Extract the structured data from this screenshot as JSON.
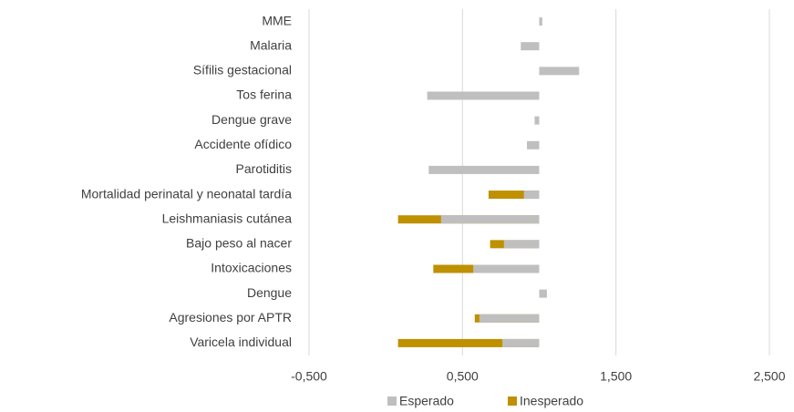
{
  "chart_data": {
    "type": "hbar",
    "categories": [
      "MME",
      "Malaria",
      "Sífilis gestacional",
      "Tos ferina",
      "Dengue grave",
      "Accidente ofídico",
      "Parotiditis",
      "Mortalidad perinatal y neonatal tardía",
      "Leishmaniasis cutánea",
      "Bajo peso al nacer",
      "Intoxicaciones",
      "Dengue",
      "Agresiones por APTR",
      "Varicela individual"
    ],
    "series": [
      {
        "name": "Esperado",
        "color": "#bfbfbf",
        "values": [
          1.02,
          0.88,
          1.26,
          0.27,
          0.97,
          0.92,
          0.28,
          0.9,
          0.36,
          0.77,
          0.57,
          1.05,
          0.61,
          0.76
        ]
      },
      {
        "name": "Inesperado",
        "color": "#bf9000",
        "values": [
          null,
          null,
          null,
          null,
          null,
          null,
          null,
          0.67,
          0.08,
          0.68,
          0.31,
          null,
          0.58,
          0.08
        ]
      }
    ],
    "axis_crosses_at": 1,
    "xlim": [
      -0.5,
      2.5
    ],
    "xticks": [
      {
        "value": -0.5,
        "label": "-0,500"
      },
      {
        "value": 0.5,
        "label": "0,500"
      },
      {
        "value": 1.5,
        "label": "1,500"
      },
      {
        "value": 2.5,
        "label": "2,500"
      }
    ],
    "grid": true,
    "legend": "bottom"
  }
}
